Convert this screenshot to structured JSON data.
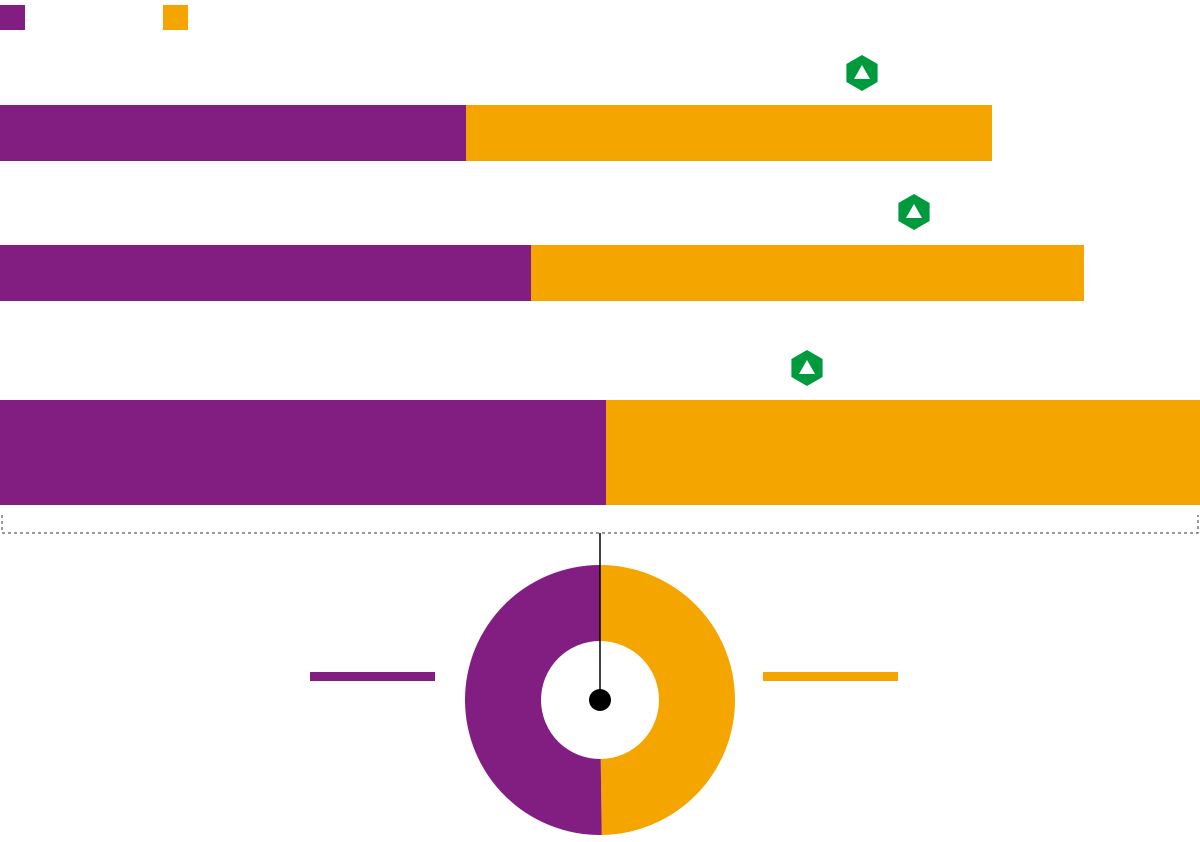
{
  "chart_data": [
    {
      "type": "bar",
      "orientation": "horizontal",
      "stacked": true,
      "categories": [
        null,
        null,
        null
      ],
      "xlim": [
        0,
        1200
      ],
      "series": [
        {
          "color": "#821e82",
          "values": [
            466,
            531,
            606
          ]
        },
        {
          "color": "#f5a500",
          "values": [
            526,
            553,
            594
          ]
        }
      ]
    },
    {
      "type": "pie",
      "donut": true,
      "values": [
        50.2,
        49.8
      ],
      "colors": [
        "#821e82",
        "#f5a500"
      ]
    }
  ]
}
